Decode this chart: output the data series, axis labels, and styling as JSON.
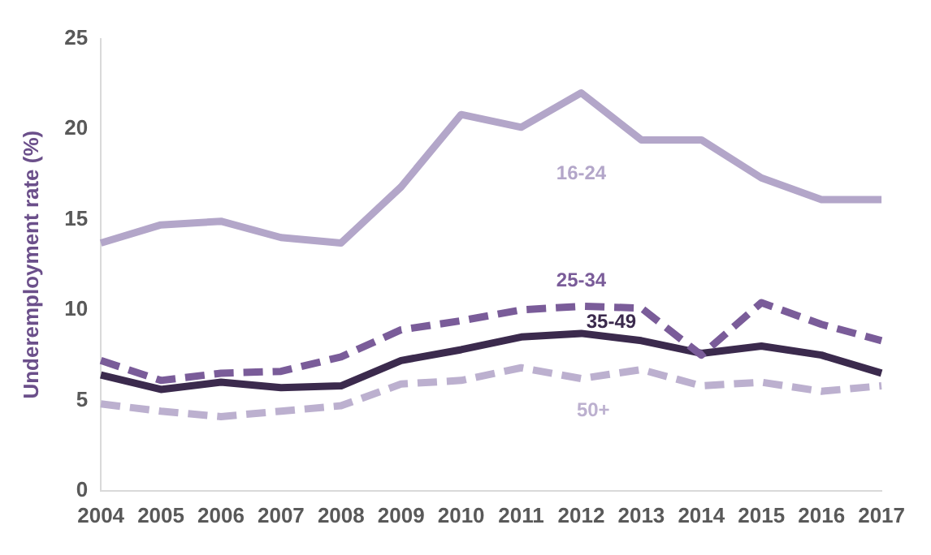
{
  "chart_data": {
    "type": "line",
    "ylabel": "Underemployment rate (%)",
    "categories": [
      "2004",
      "2005",
      "2006",
      "2007",
      "2008",
      "2009",
      "2010",
      "2011",
      "2012",
      "2013",
      "2014",
      "2015",
      "2016",
      "2017"
    ],
    "series": [
      {
        "name": "16-24",
        "color": "#b3a6c9",
        "line_style": "solid",
        "values": [
          13.7,
          14.7,
          14.9,
          14.0,
          13.7,
          16.8,
          20.8,
          20.1,
          22.0,
          19.4,
          19.4,
          17.3,
          16.1,
          16.1
        ]
      },
      {
        "name": "25-34",
        "color": "#7a5c99",
        "line_style": "dashed",
        "values": [
          7.2,
          6.1,
          6.5,
          6.6,
          7.4,
          8.9,
          9.4,
          10.0,
          10.2,
          10.1,
          7.5,
          10.4,
          9.2,
          8.3
        ]
      },
      {
        "name": "35-49",
        "color": "#3b2a4d",
        "line_style": "solid",
        "values": [
          6.4,
          5.6,
          6.0,
          5.7,
          5.8,
          7.2,
          7.8,
          8.5,
          8.7,
          8.3,
          7.6,
          8.0,
          7.5,
          6.5
        ]
      },
      {
        "name": "50+",
        "color": "#bcb0cf",
        "line_style": "dashed",
        "values": [
          4.8,
          4.4,
          4.1,
          4.4,
          4.7,
          5.9,
          6.1,
          6.8,
          6.2,
          6.7,
          5.8,
          6.0,
          5.5,
          5.8
        ]
      }
    ],
    "ylim": [
      0,
      25
    ],
    "yticks": [
      0,
      5,
      10,
      15,
      20,
      25
    ],
    "grid": false,
    "legend": false,
    "marker": "none"
  }
}
